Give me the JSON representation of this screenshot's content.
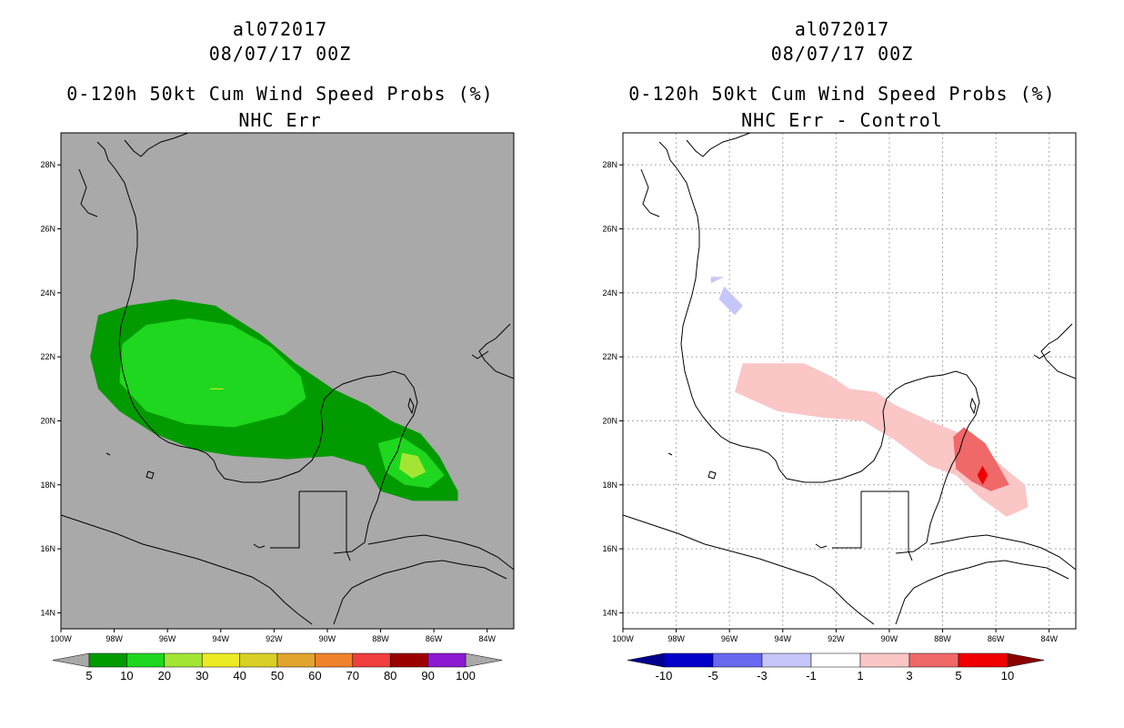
{
  "chart_data": [
    {
      "type": "map-contour",
      "title": [
        "al072017",
        "08/07/17 00Z",
        "0-120h 50kt Cum Wind Speed Probs (%)",
        "NHC Err"
      ],
      "lon_range": [
        -100,
        -83
      ],
      "lat_range": [
        13.5,
        29
      ],
      "x_ticks": [
        "100W",
        "98W",
        "96W",
        "94W",
        "92W",
        "90W",
        "88W",
        "86W",
        "84W"
      ],
      "y_ticks": [
        "14N",
        "16N",
        "18N",
        "20N",
        "22N",
        "24N",
        "26N",
        "28N"
      ],
      "background": "#a9a9a9",
      "colorbar": {
        "labels": [
          "5",
          "10",
          "20",
          "30",
          "40",
          "50",
          "60",
          "70",
          "80",
          "90",
          "100"
        ],
        "colors": [
          "#019b00",
          "#1ed71e",
          "#a2e633",
          "#ebeb23",
          "#d8d026",
          "#e3a42e",
          "#f0822b",
          "#f03e3e",
          "#9b0000",
          "#8c1ad2"
        ],
        "end_colors": [
          "#a9a9a9",
          "#a9a9a9"
        ]
      },
      "contours": [
        {
          "level": "5-10",
          "color": "#019b00"
        },
        {
          "level": "10-20",
          "color": "#1ed71e"
        },
        {
          "level": "20-30",
          "color": "#a2e633"
        }
      ]
    },
    {
      "type": "map-contour",
      "title": [
        "al072017",
        "08/07/17 00Z",
        "0-120h 50kt Cum Wind Speed Probs (%)",
        "NHC Err - Control"
      ],
      "lon_range": [
        -100,
        -83
      ],
      "lat_range": [
        13.5,
        29
      ],
      "x_ticks": [
        "100W",
        "98W",
        "96W",
        "94W",
        "92W",
        "90W",
        "88W",
        "86W",
        "84W"
      ],
      "y_ticks": [
        "14N",
        "16N",
        "18N",
        "20N",
        "22N",
        "24N",
        "26N",
        "28N"
      ],
      "background": "#ffffff",
      "colorbar": {
        "labels": [
          "-10",
          "-5",
          "-3",
          "-1",
          "1",
          "3",
          "5",
          "10"
        ],
        "colors": [
          "#0000c8",
          "#6868f0",
          "#c6c6fa",
          "#ffffff",
          "#fac6c6",
          "#f06868",
          "#f00000"
        ],
        "end_colors": [
          "#00008c",
          "#8c0000"
        ]
      },
      "contours": [
        {
          "level": "-3 to -1",
          "color": "#c6c6fa"
        },
        {
          "level": "1 to 3",
          "color": "#fac6c6"
        },
        {
          "level": "3 to 5",
          "color": "#f06868"
        },
        {
          "level": "5 to 10",
          "color": "#f00000"
        }
      ]
    }
  ]
}
